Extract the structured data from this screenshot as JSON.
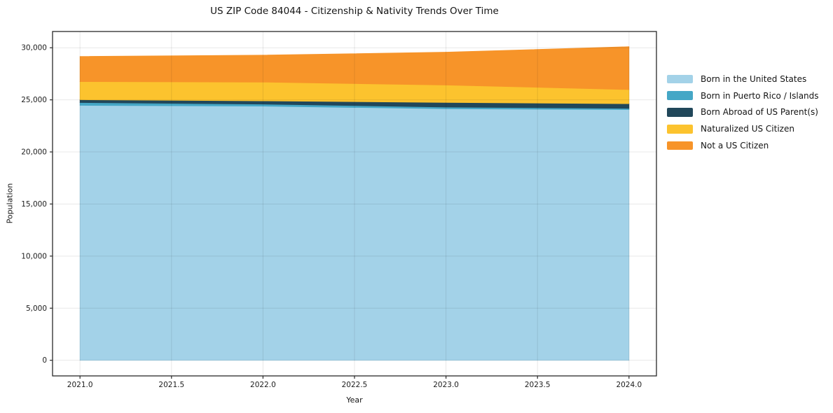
{
  "figure": {
    "background": "#ffffff",
    "spine_color": "#2a2a2a",
    "grid_color": "rgba(0,0,0,0.09)"
  },
  "chart_data": {
    "type": "area",
    "stacked": true,
    "title": "US ZIP Code 84044 - Citizenship & Nativity Trends Over Time",
    "xlabel": "Year",
    "ylabel": "Population",
    "x": [
      2021,
      2022,
      2023,
      2024
    ],
    "series": [
      {
        "name": "Born in the United States",
        "color": "#a3d2e8",
        "values": [
          24470,
          24400,
          24140,
          24070
        ]
      },
      {
        "name": "Born in Puerto Rico / Islands",
        "color": "#45a7c6",
        "values": [
          270,
          190,
          160,
          110
        ]
      },
      {
        "name": "Born Abroad of US Parent(s)",
        "color": "#21475a",
        "values": [
          270,
          310,
          450,
          450
        ]
      },
      {
        "name": "Naturalized US Citizen",
        "color": "#fcc32e",
        "values": [
          1740,
          1800,
          1670,
          1350
        ]
      },
      {
        "name": "Not a US Citizen",
        "color": "#f79429",
        "values": [
          2420,
          2590,
          3160,
          4120
        ]
      }
    ],
    "totals": [
      29170,
      29290,
      29580,
      30100
    ],
    "xlim": [
      2020.85,
      2024.15
    ],
    "ylim": [
      -1500,
      31560
    ],
    "xticks": [
      2021.0,
      2021.5,
      2022.0,
      2022.5,
      2023.0,
      2023.5,
      2024.0
    ],
    "xtick_labels": [
      "2021.0",
      "2021.5",
      "2022.0",
      "2022.5",
      "2023.0",
      "2023.5",
      "2024.0"
    ],
    "yticks": [
      0,
      5000,
      10000,
      15000,
      20000,
      25000,
      30000
    ],
    "ytick_labels": [
      "0",
      "5,000",
      "10,000",
      "15,000",
      "20,000",
      "25,000",
      "30,000"
    ],
    "grid": true,
    "legend_position": "right"
  }
}
